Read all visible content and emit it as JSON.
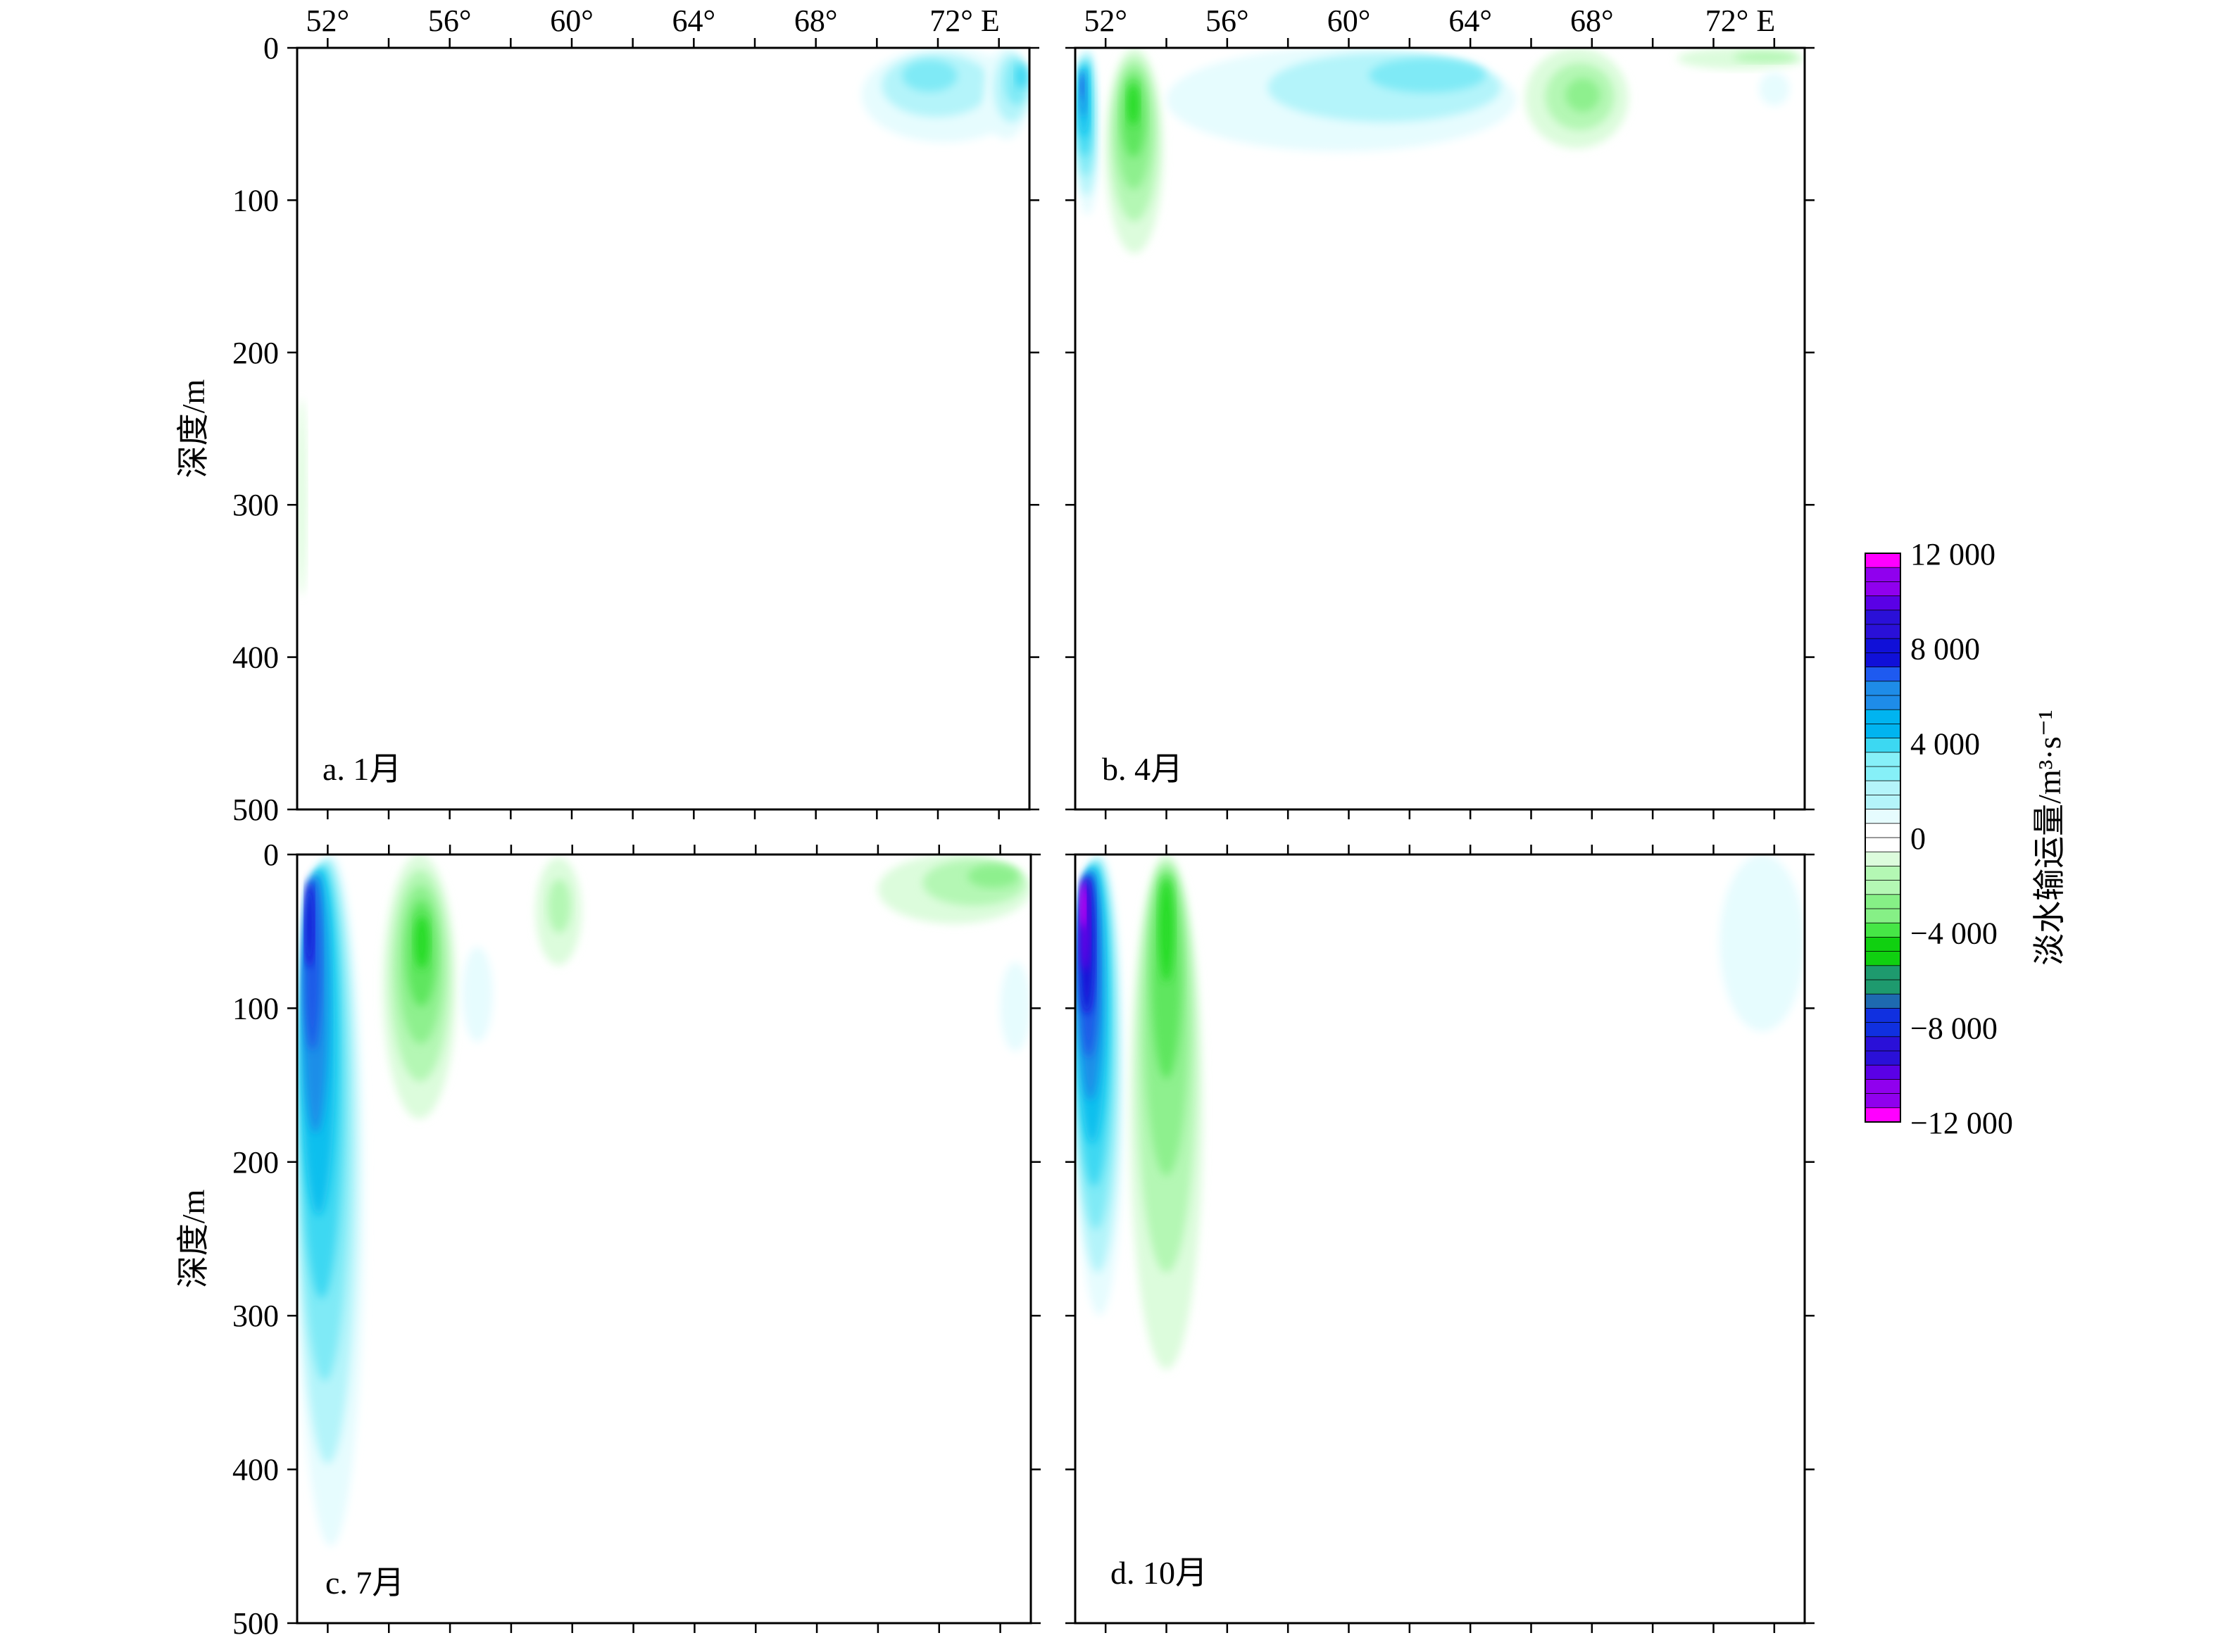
{
  "chart_data": {
    "type": "contour",
    "x_tick_labels": [
      "52°",
      "56°",
      "60°",
      "64°",
      "68°",
      "72° E"
    ],
    "x_ticks": [
      52,
      56,
      60,
      64,
      68,
      72
    ],
    "x_range": [
      51,
      75
    ],
    "y_range": [
      0,
      500
    ],
    "y_ticks": [
      0,
      100,
      200,
      300,
      400,
      500
    ],
    "y_tick_labels": [
      "0",
      "100",
      "200",
      "300",
      "400",
      "500"
    ],
    "ylabel": "深度/m",
    "y_inverted": true,
    "colorbar": {
      "title": "淡水输运量/m³·s⁻¹",
      "range": [
        -12000,
        12000
      ],
      "tick_values": [
        12000,
        8000,
        4000,
        0,
        -4000,
        -8000,
        -12000
      ],
      "tick_labels": [
        "12 000",
        "8 000",
        "4 000",
        "0",
        "−4 000",
        "−8 000",
        "−12 000"
      ],
      "colors_top_to_bottom": [
        "#ff00ff",
        "#7b00e6",
        "#1010d8",
        "#1e5af0",
        "#00b4f0",
        "#86f0f8",
        "#ffffff",
        "#b4f8b4",
        "#46e646",
        "#10d010",
        "#1e9a6e",
        "#1030e0",
        "#8000f0",
        "#ff00ff"
      ]
    },
    "panels": [
      {
        "label": "a. 1月",
        "features": [
          {
            "sign": "positive",
            "lon_range": [
              69.5,
              74.9
            ],
            "depth_range": [
              0,
              62
            ],
            "core_lon": 71.5,
            "core_depth": 12,
            "peak": 3000
          },
          {
            "sign": "positive",
            "lon_range": [
              73.5,
              75
            ],
            "depth_range": [
              0,
              60
            ],
            "core_lon": 74.9,
            "core_depth": 15,
            "peak": 4500
          },
          {
            "sign": "negative",
            "lon_range": [
              51,
              51.3
            ],
            "depth_range": [
              230,
              360
            ],
            "core_lon": 51.1,
            "core_depth": 300,
            "peak": -800
          }
        ]
      },
      {
        "label": "b. 4月",
        "features": [
          {
            "sign": "positive",
            "lon_range": [
              51,
              51.8
            ],
            "depth_range": [
              0,
              110
            ],
            "core_lon": 51.2,
            "core_depth": 20,
            "peak": 8000
          },
          {
            "sign": "negative",
            "lon_range": [
              52.0,
              53.9
            ],
            "depth_range": [
              0,
              135
            ],
            "core_lon": 52.9,
            "core_depth": 30,
            "peak": -5500
          },
          {
            "sign": "positive",
            "lon_range": [
              54.0,
              65.5
            ],
            "depth_range": [
              0,
              68
            ],
            "core_lon": 64.0,
            "core_depth": 10,
            "peak": 2500
          },
          {
            "sign": "negative",
            "lon_range": [
              65.8,
              69.2
            ],
            "depth_range": [
              0,
              66
            ],
            "core_lon": 67.8,
            "core_depth": 30,
            "peak": -3500
          },
          {
            "sign": "negative",
            "lon_range": [
              70.8,
              75
            ],
            "depth_range": [
              0,
              14
            ],
            "core_lon": 74.5,
            "core_depth": 5,
            "peak": -2000
          },
          {
            "sign": "positive",
            "lon_range": [
              73.5,
              74.5
            ],
            "depth_range": [
              16,
              38
            ],
            "core_lon": 74.0,
            "core_depth": 26,
            "peak": 1200
          }
        ]
      },
      {
        "label": "c. 7月",
        "features": [
          {
            "sign": "positive",
            "lon_range": [
              51,
              53.2
            ],
            "depth_range": [
              0,
              450
            ],
            "core_lon": 51.3,
            "core_depth": 20,
            "peak": 9000
          },
          {
            "sign": "negative",
            "lon_range": [
              53.8,
              56.2
            ],
            "depth_range": [
              0,
              172
            ],
            "core_lon": 55.1,
            "core_depth": 50,
            "peak": -5000
          },
          {
            "sign": "positive",
            "lon_range": [
              56.4,
              57.4
            ],
            "depth_range": [
              60,
              122
            ],
            "core_lon": 56.9,
            "core_depth": 90,
            "peak": 800
          },
          {
            "sign": "negative",
            "lon_range": [
              58.8,
              60.3
            ],
            "depth_range": [
              2,
              72
            ],
            "core_lon": 59.6,
            "core_depth": 30,
            "peak": -1500
          },
          {
            "sign": "negative",
            "lon_range": [
              70.0,
              75
            ],
            "depth_range": [
              0,
              45
            ],
            "core_lon": 74.4,
            "core_depth": 10,
            "peak": -3000
          },
          {
            "sign": "positive",
            "lon_range": [
              74.0,
              75
            ],
            "depth_range": [
              70,
              128
            ],
            "core_lon": 74.8,
            "core_depth": 100,
            "peak": 800
          }
        ]
      },
      {
        "label": "d. 10月",
        "features": [
          {
            "sign": "positive",
            "lon_range": [
              51,
              52.6
            ],
            "depth_range": [
              0,
              300
            ],
            "core_lon": 51.2,
            "core_depth": 20,
            "peak": 11000
          },
          {
            "sign": "negative",
            "lon_range": [
              52.8,
              55.2
            ],
            "depth_range": [
              0,
              335
            ],
            "core_lon": 54.0,
            "core_depth": 20,
            "peak": -5500
          },
          {
            "sign": "positive",
            "lon_range": [
              72.2,
              75
            ],
            "depth_range": [
              0,
              115
            ],
            "core_lon": 74.2,
            "core_depth": 40,
            "peak": 1200
          }
        ]
      }
    ]
  }
}
